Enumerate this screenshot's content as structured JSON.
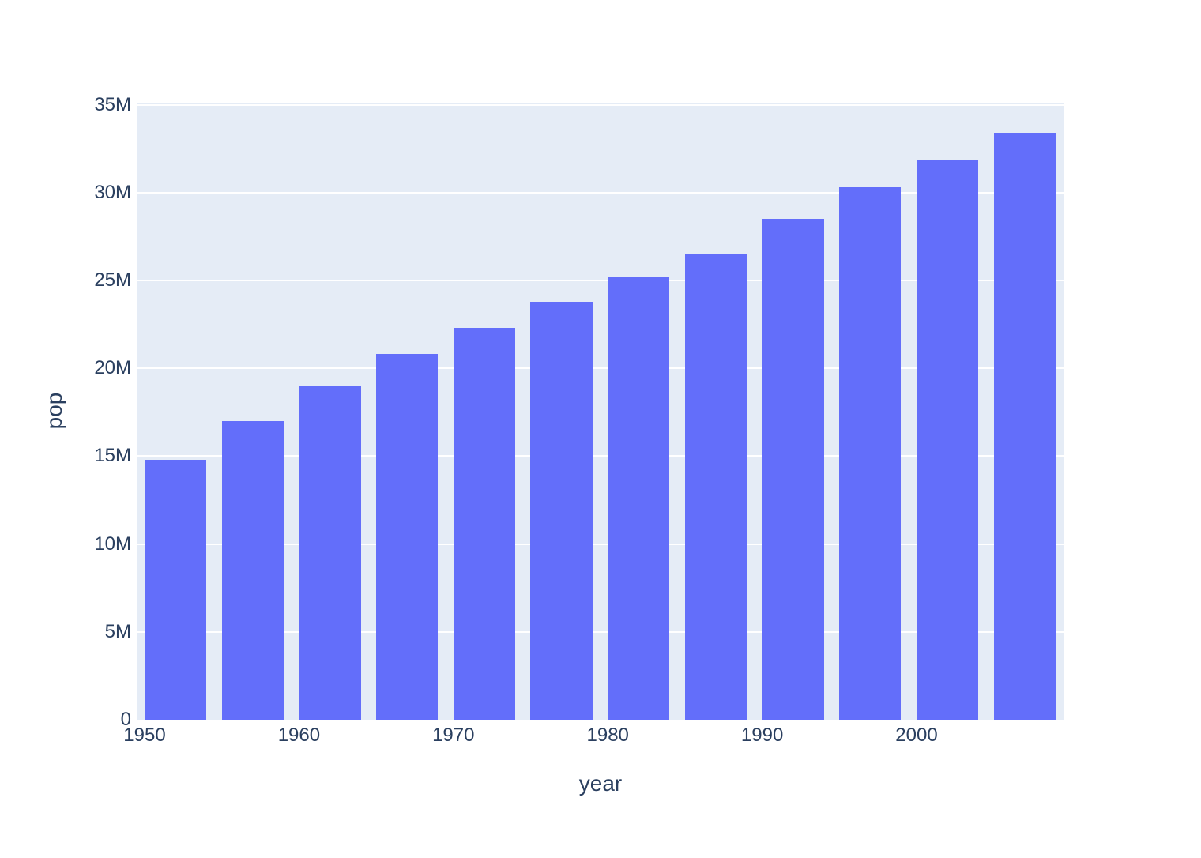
{
  "chart_data": {
    "type": "bar",
    "title": "",
    "xlabel": "year",
    "ylabel": "pop",
    "x": [
      1952,
      1957,
      1962,
      1967,
      1972,
      1977,
      1982,
      1987,
      1992,
      1997,
      2002,
      2007
    ],
    "values": [
      14785584,
      17010154,
      18985849,
      20819767,
      22284500,
      23796400,
      25201900,
      26549700,
      28523502,
      30305843,
      31902268,
      33390141
    ],
    "bar_width_years": 4,
    "x_range": [
      1949.54,
      2009.57
    ],
    "y_range": [
      0,
      35120000
    ],
    "x_ticks": [
      {
        "value": 1950,
        "label": "1950"
      },
      {
        "value": 1960,
        "label": "1960"
      },
      {
        "value": 1970,
        "label": "1970"
      },
      {
        "value": 1980,
        "label": "1980"
      },
      {
        "value": 1990,
        "label": "1990"
      },
      {
        "value": 2000,
        "label": "2000"
      }
    ],
    "y_ticks": [
      {
        "value": 0,
        "label": "0"
      },
      {
        "value": 5000000,
        "label": "5M"
      },
      {
        "value": 10000000,
        "label": "10M"
      },
      {
        "value": 15000000,
        "label": "15M"
      },
      {
        "value": 20000000,
        "label": "20M"
      },
      {
        "value": 25000000,
        "label": "25M"
      },
      {
        "value": 30000000,
        "label": "30M"
      },
      {
        "value": 35000000,
        "label": "35M"
      }
    ],
    "grid": true,
    "legend_position": "none",
    "colors": {
      "bar": "#636efa",
      "plot_background": "#e5ecf6",
      "gridline": "#ffffff",
      "text": "#2a3f5f",
      "page_background": "#ffffff"
    }
  }
}
